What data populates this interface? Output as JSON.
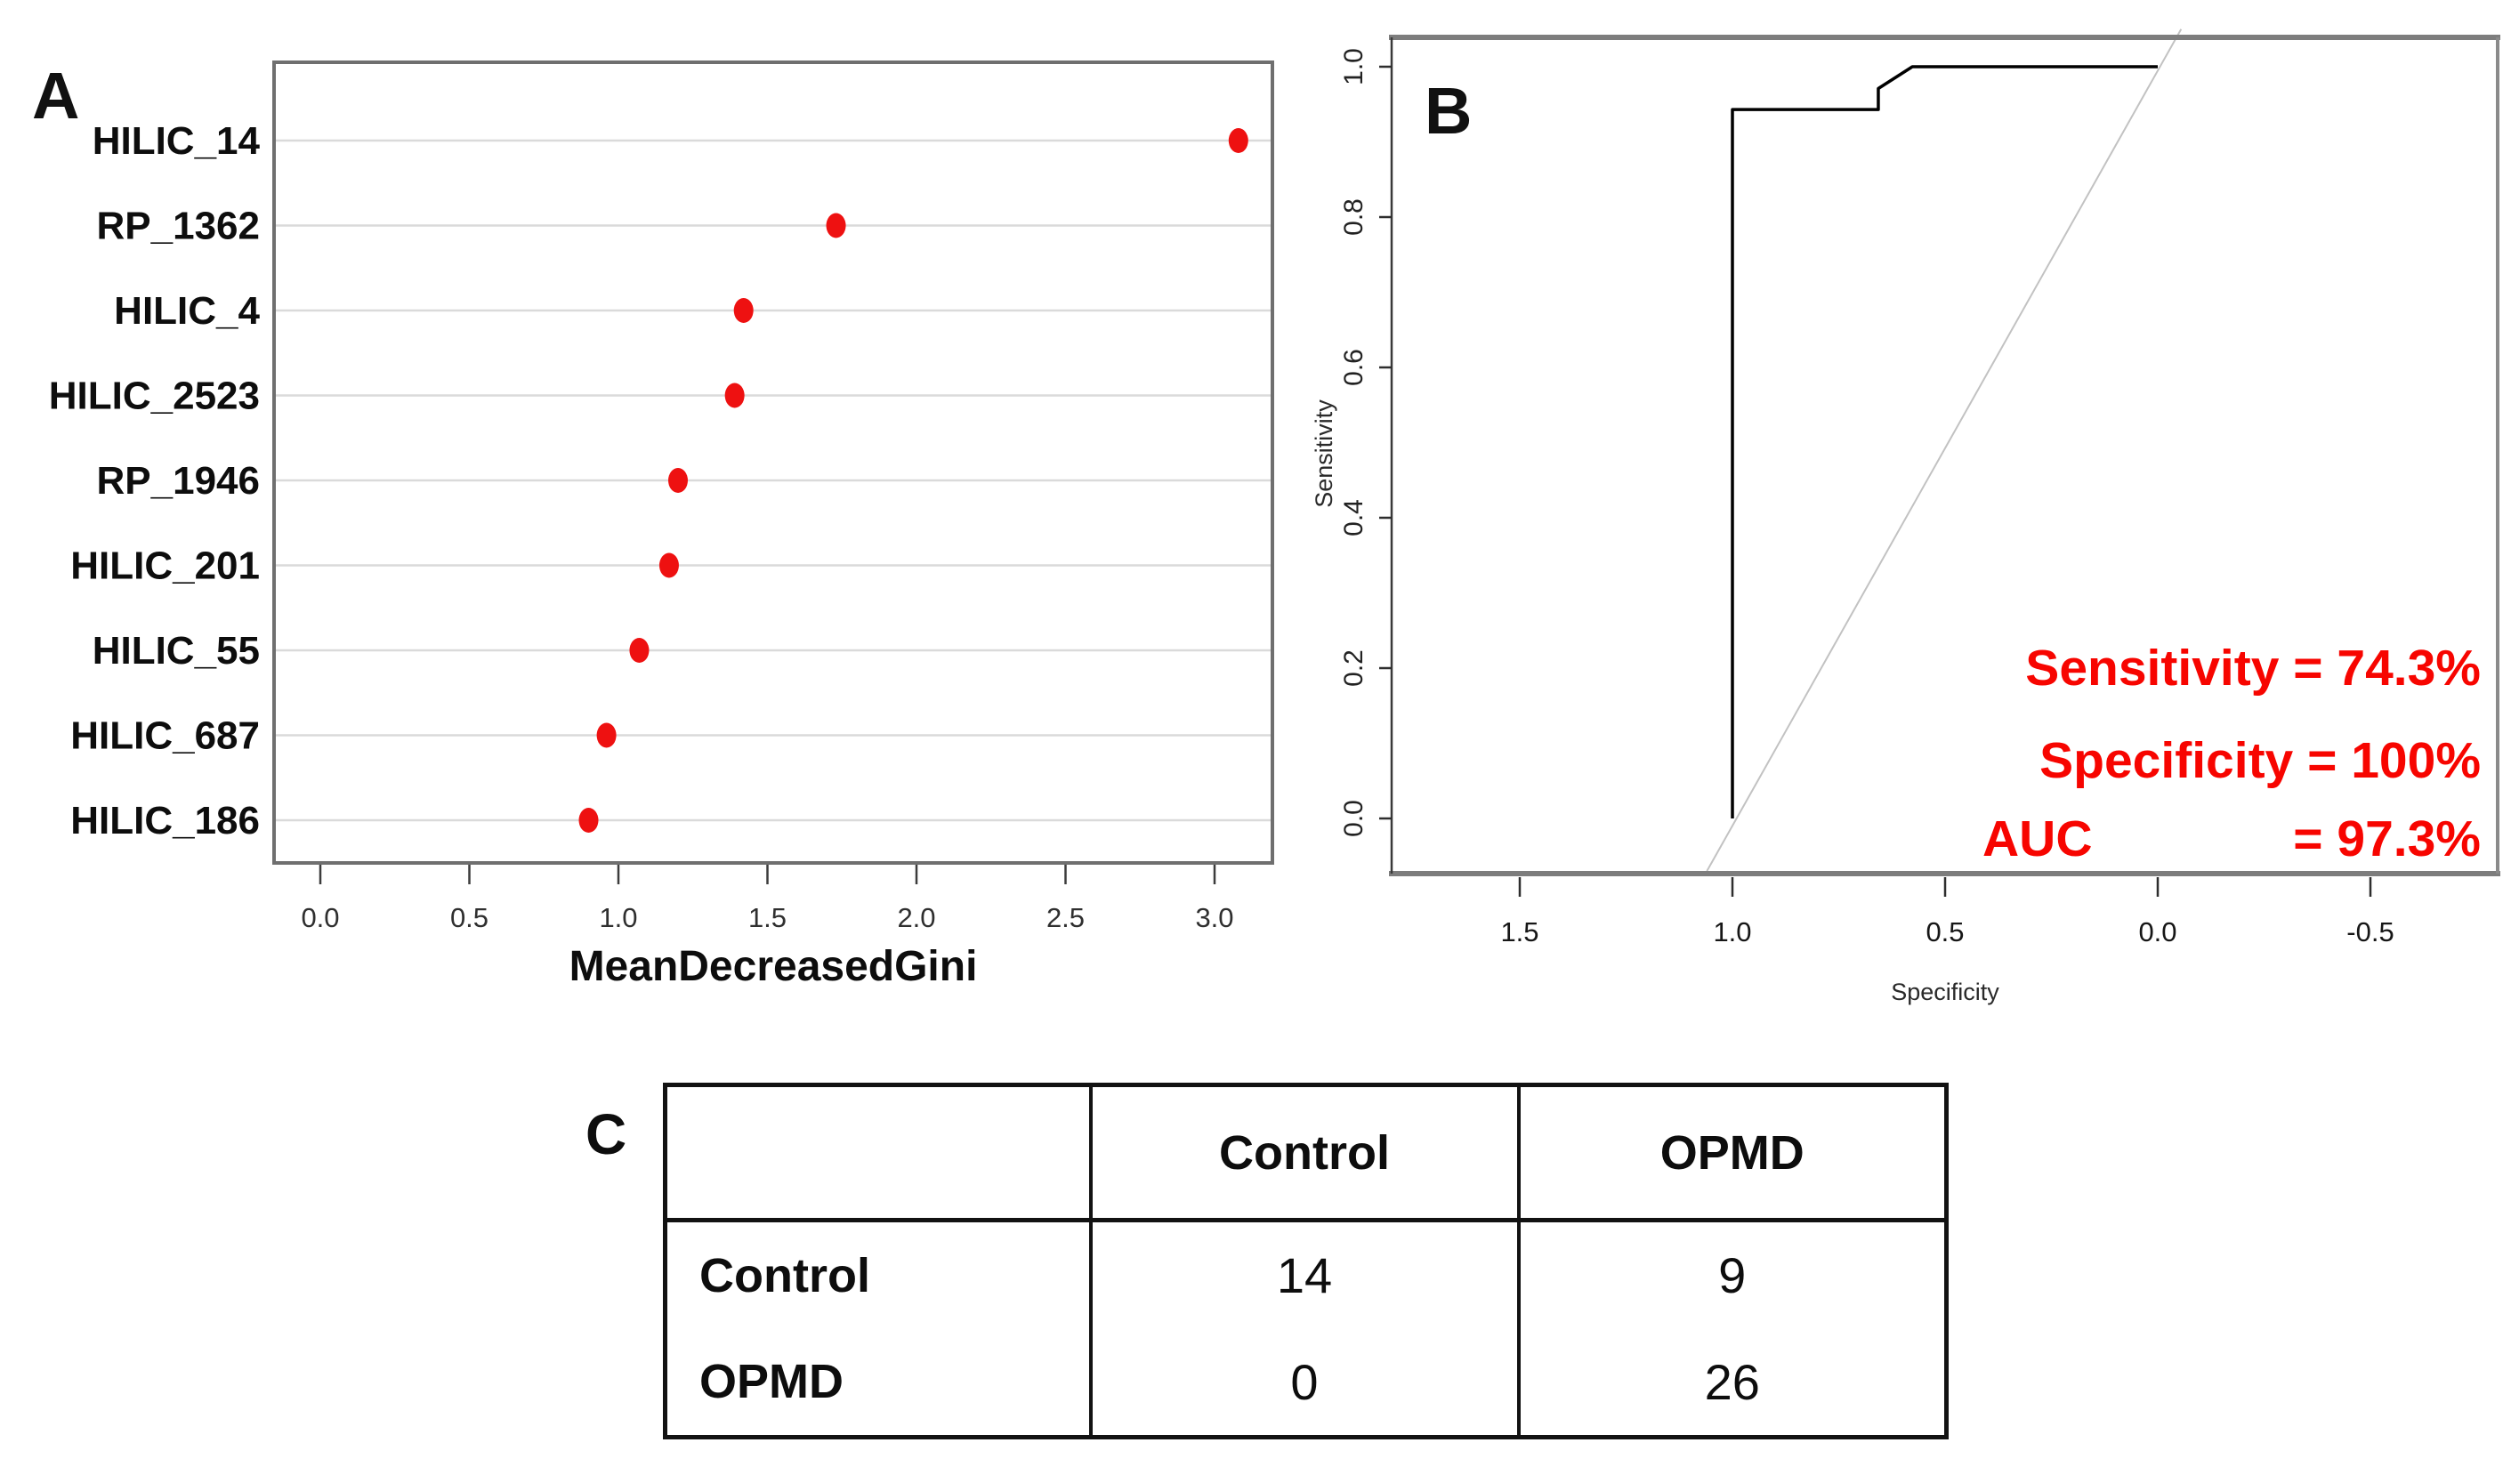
{
  "figure": {
    "background": "#ffffff"
  },
  "panel_a": {
    "label": "A",
    "xlabel": "MeanDecreasedGini",
    "point_color": "#ee1111",
    "gridline_color": "#dadada",
    "frame_color": "#6f6f6f"
  },
  "panel_b": {
    "label": "B",
    "xlabel": "Specificity",
    "ylabel": "Sensitivity",
    "annotation_color": "#f70500",
    "annotations": {
      "line1": "Sensitivity = 74.3%",
      "line2": "Specificity = 100%",
      "line3_left": "AUC",
      "line3_right": "= 97.3%"
    }
  },
  "panel_c": {
    "label": "C",
    "header": [
      "",
      "Control",
      "OPMD"
    ],
    "rows": [
      [
        "Control",
        "14",
        "9"
      ],
      [
        "OPMD",
        "0",
        "26"
      ]
    ]
  },
  "chart_data": [
    {
      "type": "scatter",
      "panel": "A",
      "title": "",
      "categories": [
        "HILIC_14",
        "RP_1362",
        "HILIC_4",
        "HILIC_2523",
        "RP_1946",
        "HILIC_201",
        "HILIC_55",
        "HILIC_687",
        "HILIC_186"
      ],
      "values": [
        3.08,
        1.73,
        1.42,
        1.39,
        1.2,
        1.17,
        1.07,
        0.96,
        0.9
      ],
      "xlabel": "MeanDecreasedGini",
      "ylabel": "",
      "xlim": [
        -0.15,
        3.2
      ],
      "xticks": [
        0.0,
        0.5,
        1.0,
        1.5,
        2.0,
        2.5,
        3.0
      ],
      "grid": "horizontal",
      "point_color": "#ee1111"
    },
    {
      "type": "line",
      "panel": "B",
      "title": "",
      "xlabel": "Specificity",
      "ylabel": "Sensitivity",
      "x_reversed": true,
      "xlim": [
        1.8,
        -0.8
      ],
      "ylim": [
        -0.07,
        1.05
      ],
      "xticks": [
        1.5,
        1.0,
        0.5,
        0.0,
        -0.5
      ],
      "yticks": [
        0.0,
        0.2,
        0.4,
        0.6,
        0.8,
        1.0
      ],
      "series": [
        {
          "name": "roc-curve",
          "color": "#000000",
          "points": [
            [
              1.0,
              0.0
            ],
            [
              1.0,
              0.943
            ],
            [
              0.657,
              0.943
            ],
            [
              0.657,
              0.971
            ],
            [
              0.577,
              1.0
            ],
            [
              0.0,
              1.0
            ]
          ]
        },
        {
          "name": "chance-line",
          "color": "#c2c2c2",
          "points": [
            [
              1.06,
              -0.07
            ],
            [
              -0.055,
              1.05
            ]
          ]
        }
      ],
      "annotations": [
        "Sensitivity = 74.3%",
        "Specificity = 100%",
        "AUC = 97.3%"
      ],
      "stats": {
        "sensitivity_pct": 74.3,
        "specificity_pct": 100,
        "auc_pct": 97.3
      },
      "legend": "none"
    },
    {
      "type": "table",
      "panel": "C",
      "columns": [
        "",
        "Control",
        "OPMD"
      ],
      "rows": [
        [
          "Control",
          "14",
          "9"
        ],
        [
          "OPMD",
          "0",
          "26"
        ]
      ]
    }
  ]
}
